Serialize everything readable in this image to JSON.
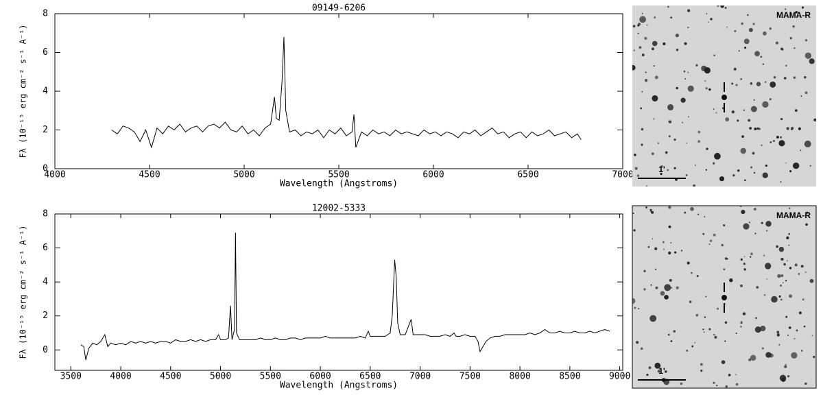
{
  "chart_data": [
    {
      "type": "line",
      "title": "09149-6206",
      "xlabel": "Wavelength (Angstroms)",
      "ylabel": "Fλ (10⁻¹⁵ erg cm⁻² s⁻¹ A⁻¹)",
      "xlim": [
        4000,
        7000
      ],
      "ylim": [
        0,
        8
      ],
      "xticks": [
        4000,
        4500,
        5000,
        5500,
        6000,
        6500,
        7000
      ],
      "yticks": [
        0,
        2,
        4,
        6,
        8
      ],
      "series": [
        {
          "color": "#000000",
          "x": [
            4300,
            4330,
            4360,
            4390,
            4420,
            4450,
            4480,
            4510,
            4540,
            4570,
            4600,
            4630,
            4660,
            4690,
            4720,
            4750,
            4780,
            4810,
            4840,
            4870,
            4900,
            4930,
            4960,
            4990,
            5020,
            5050,
            5080,
            5110,
            5140,
            5160,
            5170,
            5185,
            5200,
            5210,
            5220,
            5240,
            5270,
            5300,
            5330,
            5360,
            5390,
            5420,
            5450,
            5480,
            5510,
            5540,
            5570,
            5580,
            5590,
            5620,
            5650,
            5680,
            5710,
            5740,
            5770,
            5800,
            5830,
            5860,
            5890,
            5920,
            5950,
            5980,
            6010,
            6040,
            6070,
            6100,
            6130,
            6160,
            6190,
            6220,
            6250,
            6280,
            6310,
            6340,
            6370,
            6400,
            6430,
            6460,
            6490,
            6520,
            6550,
            6580,
            6610,
            6640,
            6670,
            6700,
            6730,
            6760,
            6780
          ],
          "values": [
            2.0,
            1.8,
            2.2,
            2.1,
            1.9,
            1.4,
            2.0,
            1.1,
            2.1,
            1.8,
            2.2,
            2.0,
            2.3,
            1.9,
            2.1,
            2.2,
            1.9,
            2.2,
            2.3,
            2.1,
            2.4,
            2.0,
            1.9,
            2.2,
            1.8,
            2.0,
            1.7,
            2.1,
            2.3,
            3.7,
            2.6,
            2.5,
            4.5,
            6.8,
            3.0,
            1.9,
            2.0,
            1.7,
            1.9,
            1.8,
            2.0,
            1.6,
            2.0,
            1.8,
            2.1,
            1.7,
            1.9,
            2.8,
            1.1,
            1.9,
            1.7,
            2.0,
            1.8,
            1.9,
            1.7,
            2.0,
            1.8,
            1.9,
            1.8,
            1.7,
            2.0,
            1.8,
            1.9,
            1.7,
            1.9,
            1.8,
            1.6,
            1.9,
            1.8,
            2.0,
            1.7,
            1.9,
            2.1,
            1.8,
            1.9,
            1.6,
            1.8,
            1.9,
            1.6,
            1.9,
            1.7,
            1.8,
            2.0,
            1.7,
            1.8,
            1.9,
            1.6,
            1.8,
            1.5
          ]
        }
      ]
    },
    {
      "type": "line",
      "title": "12002-5333",
      "xlabel": "Wavelength (Angstroms)",
      "ylabel": "Fλ (10⁻¹⁵ erg cm⁻² s⁻¹ A⁻¹)",
      "xlim": [
        3340,
        9030
      ],
      "ylim": [
        -1.2,
        8
      ],
      "xticks": [
        3500,
        4000,
        4500,
        5000,
        5500,
        6000,
        6500,
        7000,
        7500,
        8000,
        8500,
        9000
      ],
      "yticks": [
        0,
        2,
        4,
        6,
        8
      ],
      "series": [
        {
          "color": "#000000",
          "x": [
            3600,
            3630,
            3650,
            3680,
            3720,
            3760,
            3800,
            3840,
            3870,
            3900,
            3950,
            4000,
            4050,
            4100,
            4150,
            4200,
            4250,
            4300,
            4350,
            4400,
            4450,
            4500,
            4550,
            4600,
            4650,
            4700,
            4750,
            4800,
            4850,
            4900,
            4950,
            4980,
            5000,
            5050,
            5080,
            5100,
            5115,
            5140,
            5150,
            5160,
            5190,
            5250,
            5300,
            5350,
            5400,
            5450,
            5500,
            5550,
            5600,
            5650,
            5700,
            5750,
            5800,
            5850,
            5900,
            5950,
            6000,
            6050,
            6100,
            6150,
            6200,
            6250,
            6300,
            6350,
            6400,
            6450,
            6480,
            6500,
            6550,
            6600,
            6650,
            6700,
            6720,
            6745,
            6760,
            6775,
            6800,
            6850,
            6890,
            6910,
            6930,
            6950,
            7000,
            7050,
            7100,
            7150,
            7200,
            7250,
            7300,
            7340,
            7360,
            7400,
            7450,
            7500,
            7550,
            7580,
            7600,
            7630,
            7660,
            7700,
            7750,
            7800,
            7850,
            7900,
            7950,
            8000,
            8050,
            8100,
            8150,
            8200,
            8250,
            8300,
            8350,
            8400,
            8450,
            8500,
            8550,
            8600,
            8650,
            8700,
            8750,
            8800,
            8850,
            8900
          ],
          "values": [
            0.3,
            0.2,
            -0.6,
            0.1,
            0.4,
            0.3,
            0.5,
            0.9,
            0.2,
            0.4,
            0.3,
            0.4,
            0.3,
            0.5,
            0.4,
            0.5,
            0.4,
            0.5,
            0.4,
            0.5,
            0.5,
            0.4,
            0.6,
            0.5,
            0.5,
            0.6,
            0.5,
            0.6,
            0.5,
            0.6,
            0.6,
            0.9,
            0.6,
            0.6,
            0.7,
            2.6,
            0.6,
            1.2,
            6.9,
            1.0,
            0.6,
            0.6,
            0.6,
            0.6,
            0.7,
            0.6,
            0.6,
            0.7,
            0.6,
            0.6,
            0.7,
            0.7,
            0.6,
            0.7,
            0.7,
            0.7,
            0.7,
            0.8,
            0.7,
            0.7,
            0.7,
            0.7,
            0.7,
            0.7,
            0.8,
            0.7,
            1.1,
            0.8,
            0.8,
            0.8,
            0.8,
            1.0,
            2.0,
            5.3,
            4.3,
            1.6,
            0.9,
            0.9,
            1.5,
            1.8,
            0.9,
            0.9,
            0.9,
            0.9,
            0.8,
            0.8,
            0.8,
            0.9,
            0.8,
            1.0,
            0.8,
            0.8,
            0.9,
            0.8,
            0.8,
            0.5,
            -0.1,
            0.2,
            0.5,
            0.7,
            0.8,
            0.8,
            0.9,
            0.9,
            0.9,
            0.9,
            0.9,
            1.0,
            0.9,
            1.0,
            1.2,
            1.0,
            1.0,
            1.1,
            1.0,
            1.0,
            1.1,
            1.0,
            1.0,
            1.1,
            1.0,
            1.1,
            1.2,
            1.1
          ]
        }
      ]
    }
  ],
  "images": [
    {
      "label": "MAMA-R",
      "scale": "1'"
    },
    {
      "label": "MAMA-R",
      "scale": "1'"
    }
  ]
}
